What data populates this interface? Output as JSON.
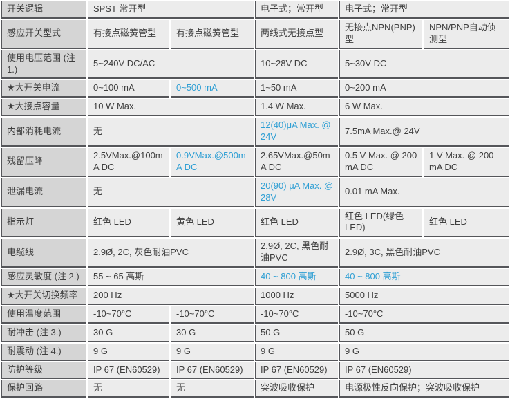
{
  "style": {
    "accent_blue": "#2f9fd4",
    "header_bg": "#d5d5d5",
    "cell_bg": "#ececec",
    "border_color": "#55565a",
    "text_color": "#3f3f3f"
  },
  "table": {
    "rows": [
      {
        "header": "开关逻辑",
        "cells": [
          {
            "text": "SPST 常开型",
            "span": 2
          },
          {
            "text": "电子式；常开型"
          },
          {
            "text": "电子式；常开型",
            "span": 2
          }
        ]
      },
      {
        "header": "感应开关型式",
        "cells": [
          {
            "text": "有接点磁簧管型"
          },
          {
            "text": "有接点磁簧管型"
          },
          {
            "text": "两线式无接点型"
          },
          {
            "text": "无接点NPN(PNP)型"
          },
          {
            "text": "NPN/PNP自动侦测型"
          }
        ]
      },
      {
        "header": "使用电压范围 (注 1.)",
        "cells": [
          {
            "text": "5~240V DC/AC",
            "span": 2
          },
          {
            "text": "10~28V DC"
          },
          {
            "text": "5~30V DC",
            "span": 2
          }
        ]
      },
      {
        "header": "★大开关电流",
        "cells": [
          {
            "text": "0~100 mA"
          },
          {
            "text": "0~500 mA",
            "blue": true
          },
          {
            "text": "1~50 mA"
          },
          {
            "text": "0~200 mA",
            "span": 2
          }
        ]
      },
      {
        "header": "★大接点容量",
        "cells": [
          {
            "text": "10 W Max.",
            "span": 2
          },
          {
            "text": "1.4 W Max."
          },
          {
            "text": "6 W Max.",
            "span": 2
          }
        ]
      },
      {
        "header": "内部消耗电流",
        "cells": [
          {
            "text": "无",
            "span": 2
          },
          {
            "text": "12(40)μA Max. @ 24V",
            "blue": true
          },
          {
            "text": "7.5mA Max.@ 24V",
            "span": 2
          }
        ]
      },
      {
        "header": "残留压降",
        "cells": [
          {
            "text": "2.5VMax.@100mA DC"
          },
          {
            "text": "0.9VMax.@500mA DC",
            "blue": true
          },
          {
            "text": "2.65VMax.@50mA DC"
          },
          {
            "text": "0.5 V Max. @ 200 mA DC"
          },
          {
            "text": "1 V Max. @ 200 mA DC"
          }
        ]
      },
      {
        "header": "泄漏电流",
        "cells": [
          {
            "text": "无",
            "span": 2
          },
          {
            "text": "20(90) μA Max. @ 28V",
            "blue": true
          },
          {
            "text": "0.01 mA Max.",
            "span": 2
          }
        ]
      },
      {
        "header": "指示灯",
        "cells": [
          {
            "text": "红色  LED"
          },
          {
            "text": "黄色  LED"
          },
          {
            "text": "红色  LED"
          },
          {
            "text": "红色  LED(绿色 LED)"
          },
          {
            "text": "红色  LED"
          }
        ]
      },
      {
        "header": "电缆线",
        "cells": [
          {
            "text": "2.9Ø, 2C, 灰色耐油PVC",
            "span": 2
          },
          {
            "text": "2.9Ø, 2C, 黑色耐油PVC"
          },
          {
            "text": "2.9Ø, 3C, 黑色耐油PVC",
            "span": 2
          }
        ]
      },
      {
        "header": "感应灵敏度 (注 2.)",
        "cells": [
          {
            "text": "55 ~ 65 高斯",
            "span": 2
          },
          {
            "text": "40 ~ 800 高斯",
            "blue": true
          },
          {
            "text": "40 ~ 800 高斯",
            "blue": true,
            "span": 2
          }
        ]
      },
      {
        "header": "★大开关切换频率",
        "cells": [
          {
            "text": "200 Hz",
            "span": 2
          },
          {
            "text": "1000 Hz"
          },
          {
            "text": "5000 Hz",
            "span": 2
          }
        ]
      },
      {
        "header": "使用温度范围",
        "cells": [
          {
            "text": "-10~70°C"
          },
          {
            "text": "-10~70°C"
          },
          {
            "text": "-10~70°C"
          },
          {
            "text": "-10~70°C",
            "span": 2
          }
        ]
      },
      {
        "header": "耐冲击 (注 3.)",
        "cells": [
          {
            "text": "30 G"
          },
          {
            "text": "30 G"
          },
          {
            "text": "50 G"
          },
          {
            "text": "50 G",
            "span": 2
          }
        ]
      },
      {
        "header": "耐震动 (注 4.)",
        "cells": [
          {
            "text": "9 G"
          },
          {
            "text": "9 G"
          },
          {
            "text": "9 G"
          },
          {
            "text": "9 G",
            "span": 2
          }
        ]
      },
      {
        "header": "防护等级",
        "cells": [
          {
            "text": "IP 67 (EN60529)"
          },
          {
            "text": "IP 67 (EN60529)"
          },
          {
            "text": "IP 67 (EN60529)"
          },
          {
            "text": "IP 67 (EN60529)",
            "span": 2
          }
        ]
      },
      {
        "header": "保护回路",
        "cells": [
          {
            "text": "无"
          },
          {
            "text": "无"
          },
          {
            "text": "突波吸收保护"
          },
          {
            "text": "电源极性反向保护；突波吸收保护",
            "span": 2
          }
        ]
      }
    ]
  }
}
